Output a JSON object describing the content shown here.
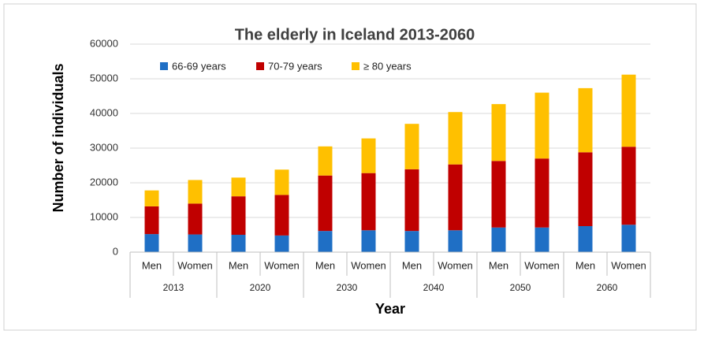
{
  "chart_data": {
    "type": "stacked_bar",
    "title": "The elderly in Iceland  2013-2060",
    "x_label": "Year",
    "y_label": "Number of individuals",
    "categories": [
      "Men",
      "Women",
      "Men",
      "Women",
      "Men",
      "Women",
      "Men",
      "Women",
      "Men",
      "Women",
      "Men",
      "Women"
    ],
    "groups": [
      "2013",
      "2020",
      "2030",
      "2040",
      "2050",
      "2060"
    ],
    "series": [
      {
        "name": "66-69 years",
        "color": "#1f6fc5",
        "values": [
          5200,
          5100,
          5000,
          4800,
          6100,
          6300,
          6100,
          6300,
          7100,
          7100,
          7500,
          7900
        ]
      },
      {
        "name": "70-79 years",
        "color": "#c00000",
        "values": [
          8000,
          8900,
          11100,
          11700,
          16000,
          16500,
          17800,
          19000,
          19200,
          19900,
          21300,
          22500
        ]
      },
      {
        "name": "≥ 80  years",
        "color": "#ffc000",
        "values": [
          4600,
          6800,
          5400,
          7300,
          8400,
          10000,
          13100,
          15100,
          16400,
          19000,
          18500,
          20800
        ]
      }
    ],
    "ylim": [
      0,
      60000
    ],
    "yticks": [
      0,
      10000,
      20000,
      30000,
      40000,
      50000,
      60000
    ],
    "grid": true,
    "legend": "top"
  }
}
